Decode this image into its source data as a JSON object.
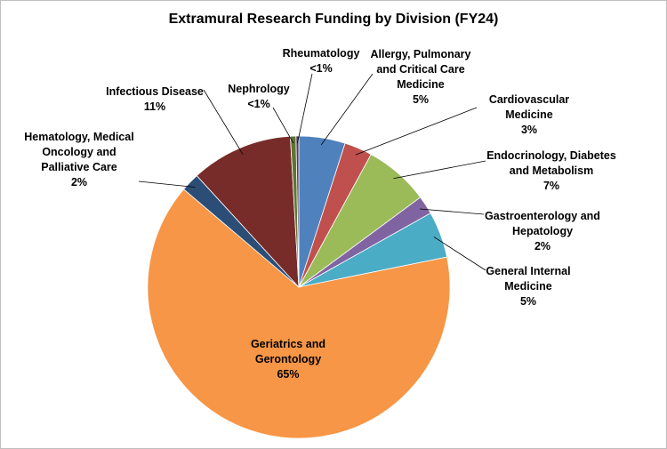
{
  "chart_data": {
    "type": "pie",
    "title": "Extramural Research Funding by Division (FY24)",
    "categories": [
      "Allergy, Pulmonary and Critical Care Medicine",
      "Cardiovascular Medicine",
      "Endocrinology, Diabetes and Metabolism",
      "Gastroenterology and Hepatology",
      "General Internal Medicine",
      "Geriatrics and Gerontology",
      "Hematology, Medical Oncology and Palliative Care",
      "Infectious Disease",
      "Nephrology",
      "Rheumatology"
    ],
    "values": [
      5,
      3,
      7,
      2,
      5,
      65,
      2,
      11,
      0.6,
      0.3
    ],
    "value_labels": [
      "5%",
      "3%",
      "7%",
      "2%",
      "5%",
      "65%",
      "2%",
      "11%",
      "<1%",
      "<1%"
    ],
    "colors": [
      "#4f81bd",
      "#c0504d",
      "#9bbb59",
      "#8064a2",
      "#4bacc6",
      "#f79646",
      "#2c4d75",
      "#772c2a",
      "#5f7530",
      "#4d3b62"
    ]
  }
}
